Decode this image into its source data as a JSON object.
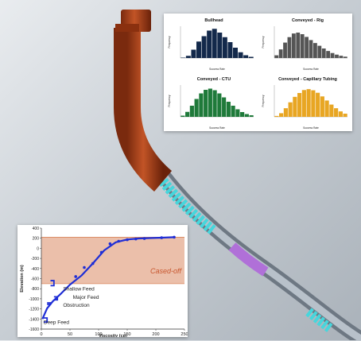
{
  "colors": {
    "casing": "#b4481e",
    "tubing": "#8f9aa6",
    "cyan_zone": "#46d6dc",
    "purple_zone": "#b070d8",
    "bullhead": "#13294b",
    "rig": "#555555",
    "ctu": "#1f7a3a",
    "capillary": "#e8a623",
    "profile_line": "#1f2ed6",
    "cased_off": "#e8b49b"
  },
  "chart_data": [
    {
      "type": "bar",
      "title": "Bullhead",
      "xlabel": "Success Rate",
      "ylabel": "Frequency",
      "values": [
        20,
        110,
        420,
        830,
        1100,
        1380,
        1470,
        1280,
        1050,
        800,
        520,
        290,
        140,
        60
      ],
      "ylim": [
        0,
        1600
      ],
      "color": "#13294b"
    },
    {
      "type": "bar",
      "title": "Conveyed - Rig",
      "xlabel": "Success Rate",
      "ylabel": "Frequency",
      "values": [
        120,
        380,
        680,
        920,
        1080,
        1120,
        1050,
        930,
        790,
        660,
        540,
        420,
        310,
        220,
        150,
        100,
        60
      ],
      "ylim": [
        0,
        1400
      ],
      "color": "#555555"
    },
    {
      "type": "bar",
      "title": "Conveyed - CTU",
      "xlabel": "Success Rate",
      "ylabel": "Frequency",
      "values": [
        60,
        250,
        560,
        900,
        1180,
        1360,
        1420,
        1340,
        1180,
        980,
        760,
        560,
        380,
        240,
        140,
        80
      ],
      "ylim": [
        0,
        1600
      ],
      "color": "#1f7a3a"
    },
    {
      "type": "bar",
      "title": "Conveyed - Capillary Tubing",
      "xlabel": "Success Rate",
      "ylabel": "Frequency",
      "values": [
        40,
        160,
        380,
        640,
        880,
        1050,
        1180,
        1220,
        1170,
        1060,
        900,
        720,
        540,
        380,
        240,
        140
      ],
      "ylim": [
        0,
        1400
      ],
      "color": "#e8a623"
    },
    {
      "type": "line",
      "title": "",
      "xlabel": "Viscosity (cp)",
      "ylabel": "Elevation (m)",
      "xlim": [
        0,
        250
      ],
      "ylim": [
        -1600,
        400
      ],
      "xticks": [
        "0",
        "50",
        "100",
        "150",
        "200",
        "250"
      ],
      "yticks": [
        "400",
        "200",
        "0",
        "-200",
        "-400",
        "-600",
        "-800",
        "-1000",
        "-1200",
        "-1400",
        "-1600"
      ],
      "cased_off": {
        "label": "Cased-off",
        "range": [
          -700,
          220
        ]
      },
      "annotations": [
        "Shallow Feed",
        "Major Feed",
        "Obstruction",
        "Deep Feed"
      ],
      "series": [
        {
          "x": [
            2,
            5,
            10,
            20,
            35,
            50,
            70,
            90,
            110,
            130,
            150,
            170,
            195,
            215,
            232
          ],
          "y": [
            -1400,
            -1320,
            -1190,
            -1050,
            -890,
            -720,
            -540,
            -300,
            -40,
            120,
            175,
            195,
            205,
            212,
            220
          ]
        }
      ],
      "markers": {
        "x": [
          60,
          75,
          90,
          105,
          120,
          135,
          150,
          165,
          180,
          210,
          232
        ],
        "y": [
          -560,
          -380,
          -300,
          -80,
          90,
          140,
          170,
          185,
          195,
          210,
          220
        ]
      }
    }
  ]
}
